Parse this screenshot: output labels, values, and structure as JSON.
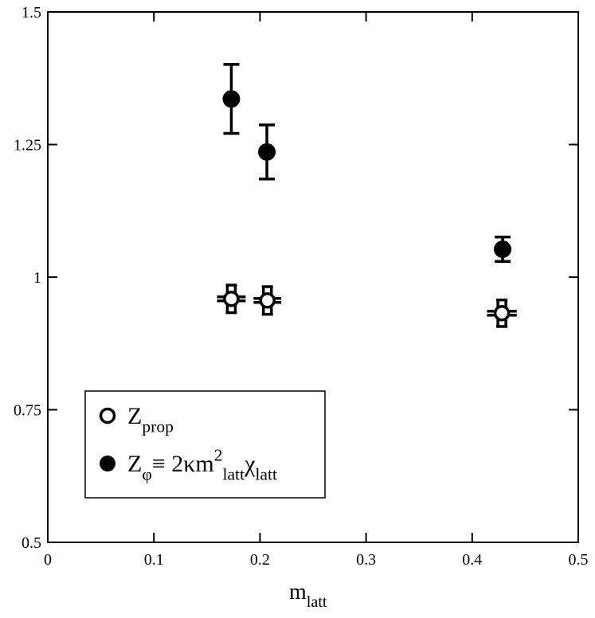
{
  "chart_data": {
    "type": "scatter",
    "x_label": [
      {
        "text": "m",
        "shift": "base"
      },
      {
        "text": "latt",
        "shift": "sub"
      }
    ],
    "xlim": [
      0,
      0.5
    ],
    "xticks": [
      0,
      0.1,
      0.2,
      0.3,
      0.4,
      0.5
    ],
    "ylim": [
      0.5,
      1.5
    ],
    "yticks": [
      0.5,
      0.75,
      1,
      1.25,
      1.5
    ],
    "grid": false,
    "legend": "lower left",
    "series": [
      {
        "name": [
          {
            "text": "Z",
            "shift": "base"
          },
          {
            "text": "prop",
            "shift": "sub"
          }
        ],
        "marker": "open",
        "color": "#000000",
        "x": [
          0.173,
          0.207,
          0.428
        ],
        "values": [
          0.959,
          0.956,
          0.932
        ],
        "errors": [
          0.026,
          0.026,
          0.025
        ],
        "xerrors": [
          0.0135,
          0.013,
          0.014
        ]
      },
      {
        "name": [
          {
            "text": "Z",
            "shift": "base"
          },
          {
            "text": "φ",
            "shift": "sub"
          },
          {
            "text": "≡ 2κm",
            "shift": "base"
          },
          {
            "text": "2",
            "shift": "sup"
          },
          {
            "text": "latt",
            "shift": "sub"
          },
          {
            "text": "χ",
            "shift": "base"
          },
          {
            "text": "latt",
            "shift": "sub"
          }
        ],
        "marker": "filled",
        "color": "#000000",
        "x": [
          0.173,
          0.2065,
          0.4287
        ],
        "values": [
          1.336,
          1.236,
          1.0526
        ],
        "errors": [
          0.065,
          0.051,
          0.023
        ]
      }
    ]
  }
}
